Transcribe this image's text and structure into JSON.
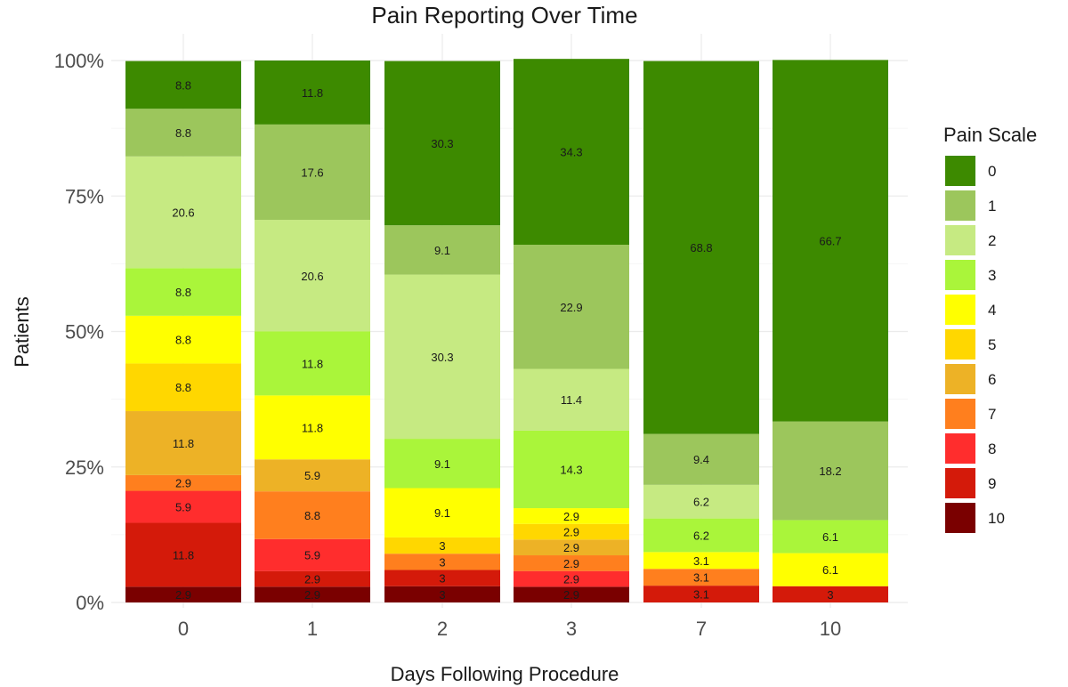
{
  "chart_data": {
    "type": "bar",
    "stacked": true,
    "normalized": true,
    "title": "Pain Reporting Over Time",
    "xlabel": "Days Following Procedure",
    "ylabel": "Patients",
    "ylim": [
      0,
      100
    ],
    "y_ticks": [
      "0%",
      "25%",
      "50%",
      "75%",
      "100%"
    ],
    "y_tick_values": [
      0,
      25,
      50,
      75,
      100
    ],
    "grid": true,
    "legend": {
      "title": "Pain Scale",
      "placement": "right"
    },
    "categories": [
      "0",
      "1",
      "2",
      "3",
      "7",
      "10"
    ],
    "series": [
      {
        "name": "0",
        "color": "#3d8a00",
        "values": [
          8.8,
          11.8,
          30.3,
          34.3,
          68.8,
          66.7
        ]
      },
      {
        "name": "1",
        "color": "#9cc65c",
        "values": [
          8.8,
          17.6,
          9.1,
          22.9,
          9.4,
          18.2
        ]
      },
      {
        "name": "2",
        "color": "#c6ea82",
        "values": [
          20.6,
          20.6,
          30.3,
          11.4,
          6.2,
          0
        ]
      },
      {
        "name": "3",
        "color": "#aaf53a",
        "values": [
          8.8,
          11.8,
          9.1,
          14.3,
          6.2,
          6.1
        ]
      },
      {
        "name": "4",
        "color": "#ffff00",
        "values": [
          8.8,
          11.8,
          9.1,
          2.9,
          3.1,
          6.1
        ]
      },
      {
        "name": "5",
        "color": "#ffd700",
        "values": [
          8.8,
          0,
          3,
          2.9,
          0,
          0
        ]
      },
      {
        "name": "6",
        "color": "#edb226",
        "values": [
          11.8,
          5.9,
          0,
          2.9,
          0,
          0
        ]
      },
      {
        "name": "7",
        "color": "#ff7f1e",
        "values": [
          2.9,
          8.8,
          3,
          2.9,
          3.1,
          0
        ]
      },
      {
        "name": "8",
        "color": "#ff2d2d",
        "values": [
          5.9,
          5.9,
          0,
          2.9,
          0,
          0
        ]
      },
      {
        "name": "9",
        "color": "#d41a0a",
        "values": [
          11.8,
          2.9,
          3,
          0,
          3.1,
          3
        ]
      },
      {
        "name": "10",
        "color": "#7a0000",
        "values": [
          2.9,
          2.9,
          3,
          2.9,
          0,
          0
        ]
      }
    ]
  }
}
